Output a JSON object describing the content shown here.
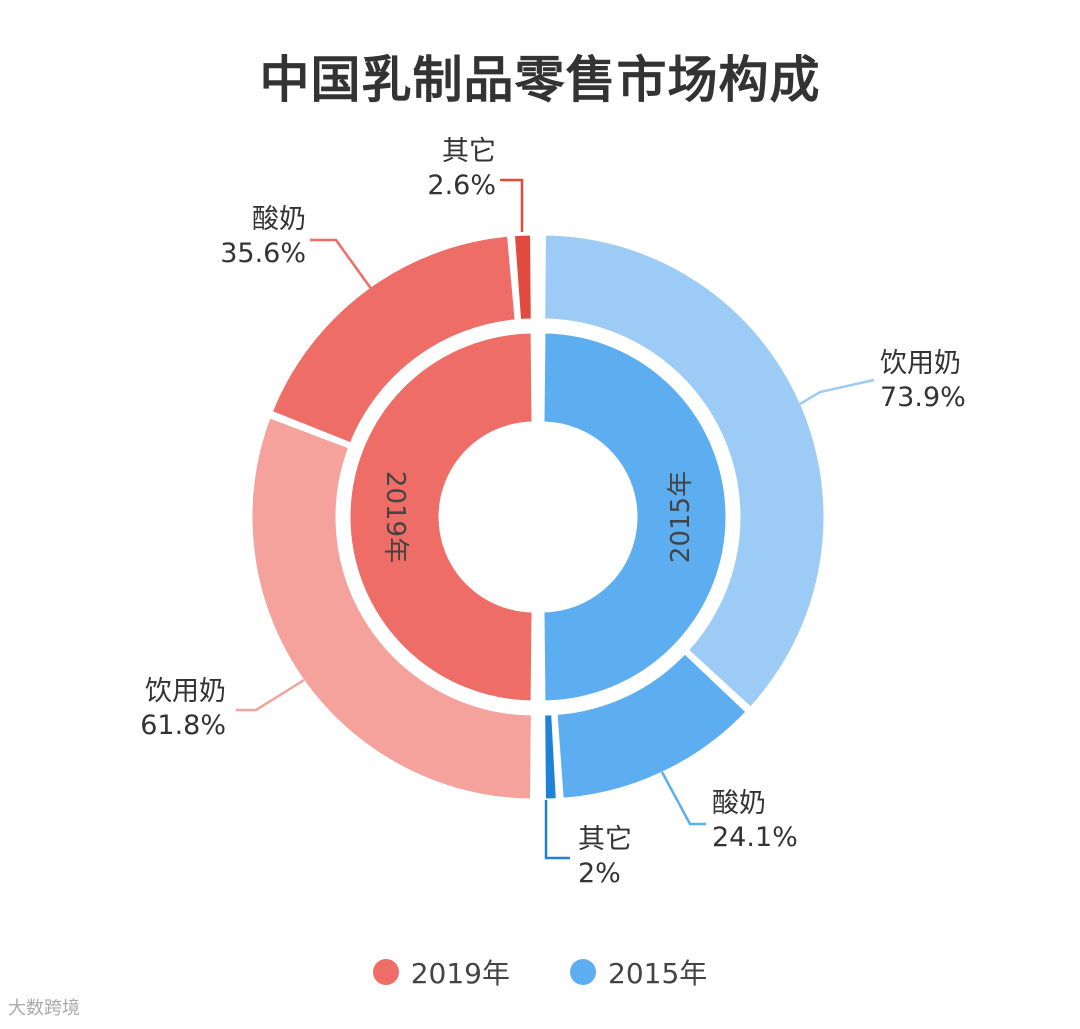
{
  "title": "中国乳制品零售市场构成",
  "footer": "大数跨境",
  "chart_data": {
    "type": "pie",
    "subtype": "split-donut",
    "title": "中国乳制品零售市场构成",
    "groups": [
      {
        "name": "2019年",
        "side": "left",
        "inner_color": "#ee6d66",
        "slices": [
          {
            "label": "饮用奶",
            "value": 61.8,
            "pct": "61.8%",
            "color": "#f4a29b"
          },
          {
            "label": "酸奶",
            "value": 35.6,
            "pct": "35.6%",
            "color": "#ee6d66"
          },
          {
            "label": "其它",
            "value": 2.6,
            "pct": "2.6%",
            "color": "#e14b3f"
          }
        ]
      },
      {
        "name": "2015年",
        "side": "right",
        "inner_color": "#5caef0",
        "slices": [
          {
            "label": "饮用奶",
            "value": 73.9,
            "pct": "73.9%",
            "color": "#9ccbf5"
          },
          {
            "label": "酸奶",
            "value": 24.1,
            "pct": "24.1%",
            "color": "#5caef0"
          },
          {
            "label": "其它",
            "value": 2.0,
            "pct": "2%",
            "color": "#1e82d8"
          }
        ]
      }
    ],
    "legend": {
      "position": "bottom-center",
      "items": [
        "2019年",
        "2015年"
      ]
    }
  }
}
